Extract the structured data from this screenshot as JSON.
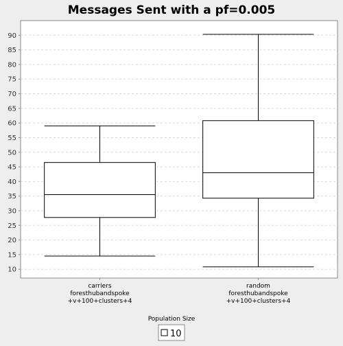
{
  "chart_data": {
    "type": "box",
    "title": "Messages Sent with a pf=0.005",
    "xlabel": "Population Size",
    "ylabel": "",
    "ylim": [
      7,
      95
    ],
    "yticks": [
      10,
      15,
      20,
      25,
      30,
      35,
      40,
      45,
      50,
      55,
      60,
      65,
      70,
      75,
      80,
      85,
      90
    ],
    "grid": true,
    "legend": {
      "position": "bottom-center",
      "entries": [
        "10"
      ]
    },
    "categories": [
      {
        "lines": [
          "carriers",
          "foresthubandspoke",
          "+v+100+clusters+4"
        ]
      },
      {
        "lines": [
          "random",
          "foresthubandspoke",
          "+v+100+clusters+4"
        ]
      }
    ],
    "boxes": [
      {
        "whisker_low": 14.5,
        "q1": 27.7,
        "median": 35.5,
        "q3": 46.5,
        "whisker_high": 59.0
      },
      {
        "whisker_low": 10.8,
        "q1": 34.3,
        "median": 43.0,
        "q3": 60.8,
        "whisker_high": 90.3
      }
    ],
    "colors": {
      "box_fill": "#ffffff",
      "box_stroke": "#000000",
      "grid": "#d8d8d8",
      "plot_bg": "#ffffff",
      "page_bg": "#eeeeee"
    }
  }
}
